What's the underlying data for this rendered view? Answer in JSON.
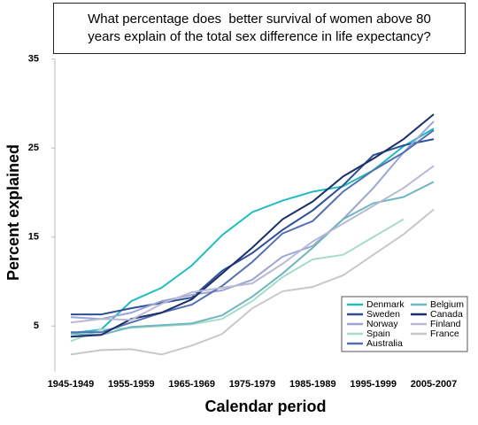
{
  "chart_data": {
    "type": "line",
    "title": "What percentage does  better survival of women above 80 years explain of the total sex difference in life expectancy?",
    "x_label": "Calendar period",
    "y_label": "Percent explained",
    "categories": [
      "1945-1949",
      null,
      "1955-1959",
      null,
      "1965-1969",
      null,
      "1975-1979",
      null,
      "1985-1989",
      null,
      "1995-1999",
      null,
      "2005-2007"
    ],
    "ylim": [
      0,
      35
    ],
    "yticks": [
      5,
      15,
      25,
      35
    ],
    "grid": false,
    "legend": "lower right",
    "series": [
      {
        "name": "Denmark",
        "color": "#1fbcc0",
        "values": [
          4.2,
          4.6,
          7.8,
          9.3,
          11.8,
          15.2,
          17.8,
          19.1,
          20.1,
          20.7,
          22.5,
          25.2,
          27.2
        ]
      },
      {
        "name": "Sweden",
        "color": "#2d4f96",
        "values": [
          6.3,
          6.3,
          7.0,
          7.6,
          8.2,
          11.2,
          13.2,
          15.8,
          18.0,
          20.8,
          24.2,
          25.3,
          26.0
        ]
      },
      {
        "name": "Norway",
        "color": "#9ba6d6",
        "values": [
          6.0,
          5.8,
          6.5,
          7.8,
          8.5,
          9.0,
          10.2,
          12.8,
          14.0,
          17.0,
          20.5,
          24.5,
          28.0
        ]
      },
      {
        "name": "Spain",
        "color": "#a8dcc6",
        "values": [
          3.3,
          4.6,
          4.8,
          5.0,
          5.2,
          5.8,
          7.8,
          10.5,
          12.5,
          13.0,
          15.0,
          17.0,
          null
        ]
      },
      {
        "name": "Australia",
        "color": "#5470b2",
        "values": [
          4.3,
          4.3,
          5.4,
          6.5,
          7.4,
          9.5,
          12.2,
          15.4,
          16.8,
          20.1,
          22.5,
          24.5,
          27.0
        ]
      },
      {
        "name": "Belgium",
        "color": "#6fb6c0",
        "values": [
          4.1,
          4.0,
          4.9,
          5.1,
          5.3,
          6.2,
          8.3,
          10.9,
          13.8,
          17.0,
          18.8,
          19.5,
          21.2
        ]
      },
      {
        "name": "Canada",
        "color": "#1b2f68",
        "values": [
          3.8,
          4.0,
          5.8,
          6.5,
          8.0,
          10.9,
          13.8,
          17.0,
          19.0,
          21.8,
          23.8,
          26.0,
          28.8
        ]
      },
      {
        "name": "Finland",
        "color": "#b9b9d6",
        "values": [
          5.4,
          5.8,
          5.7,
          7.5,
          8.8,
          9.3,
          9.8,
          12.0,
          14.5,
          16.5,
          18.5,
          20.5,
          23.0
        ]
      },
      {
        "name": "France",
        "color": "#c8c8c8",
        "values": [
          1.8,
          2.3,
          2.4,
          1.8,
          2.8,
          4.1,
          7.0,
          8.9,
          9.4,
          10.7,
          13.0,
          15.3,
          18.1
        ]
      }
    ]
  }
}
